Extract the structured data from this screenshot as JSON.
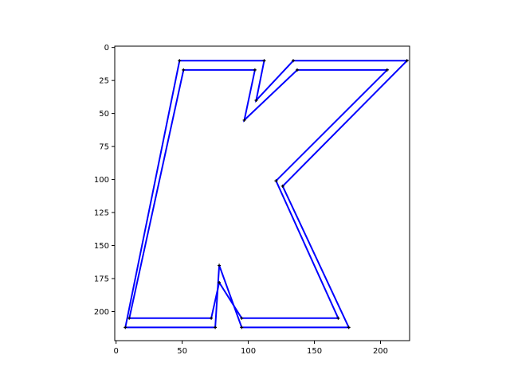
{
  "chart_data": {
    "type": "line",
    "title": "",
    "xlabel": "",
    "ylabel": "",
    "xlim": [
      -1,
      222
    ],
    "ylim": [
      222,
      -1
    ],
    "y_inverted": true,
    "grid": false,
    "legend": "none",
    "xticks": [
      0,
      50,
      100,
      150,
      200
    ],
    "xtick_labels": [
      "0",
      "50",
      "100",
      "150",
      "200"
    ],
    "yticks": [
      0,
      25,
      50,
      75,
      100,
      125,
      150,
      175,
      200
    ],
    "ytick_labels": [
      "0",
      "25",
      "50",
      "75",
      "100",
      "125",
      "150",
      "175",
      "200"
    ],
    "line_color": "#0000ff",
    "vertex_color": "#000000",
    "series": [
      {
        "closed": true,
        "points": [
          [
            48,
            10
          ],
          [
            112,
            10
          ],
          [
            106,
            40
          ],
          [
            134,
            10
          ],
          [
            220,
            10
          ],
          [
            126,
            105
          ],
          [
            176,
            212
          ],
          [
            95,
            212
          ],
          [
            78,
            165
          ],
          [
            75,
            212
          ],
          [
            7,
            212
          ]
        ]
      },
      {
        "closed": true,
        "points": [
          [
            51,
            17
          ],
          [
            105,
            17
          ],
          [
            97,
            55
          ],
          [
            137,
            17
          ],
          [
            205,
            17
          ],
          [
            121,
            101
          ],
          [
            168,
            205
          ],
          [
            95,
            205
          ],
          [
            78,
            178
          ],
          [
            72,
            205
          ],
          [
            10,
            205
          ]
        ]
      }
    ]
  }
}
